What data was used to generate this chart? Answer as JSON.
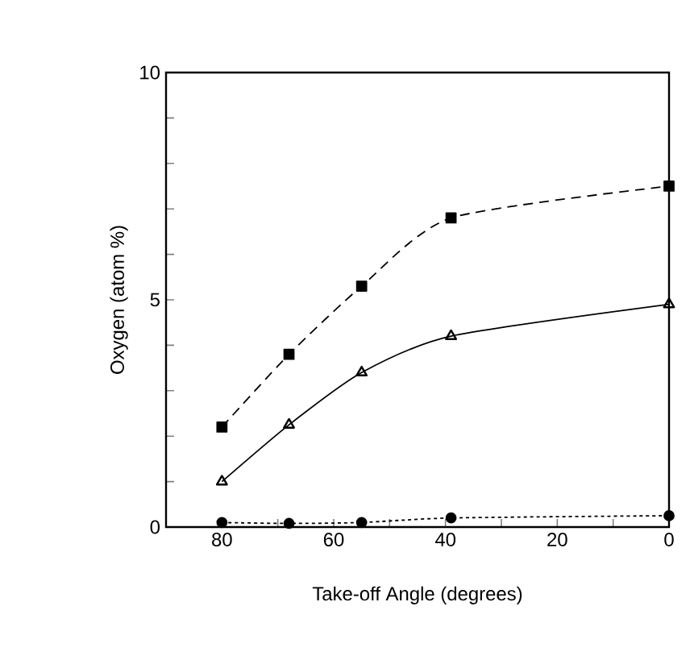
{
  "chart_data": {
    "type": "line",
    "xlabel": "Take-off Angle (degrees)",
    "ylabel": "Oxygen (atom %)",
    "xlim": [
      90,
      0
    ],
    "ylim": [
      0,
      10
    ],
    "xticks": [
      80,
      {
        "value": 70,
        "label": null
      },
      60,
      {
        "value": 50,
        "label": null
      },
      40,
      {
        "value": 30,
        "label": null
      },
      20,
      {
        "value": 10,
        "label": null
      },
      0
    ],
    "yticks": [
      0,
      {
        "value": 1,
        "label": null
      },
      {
        "value": 2,
        "label": null
      },
      {
        "value": 3,
        "label": null
      },
      {
        "value": 4,
        "label": null
      },
      5,
      {
        "value": 6,
        "label": null
      },
      {
        "value": 7,
        "label": null
      },
      {
        "value": 8,
        "label": null
      },
      {
        "value": 9,
        "label": null
      },
      10
    ],
    "grid": false,
    "series": [
      {
        "color": "#000000",
        "marker": "square",
        "line_style": "dashed",
        "x": [
          80,
          68,
          55,
          39,
          0
        ],
        "values": [
          2.2,
          3.8,
          5.3,
          6.8,
          7.5
        ]
      },
      {
        "color": "#000000",
        "marker": "triangle",
        "line_style": "solid",
        "x": [
          80,
          68,
          55,
          39,
          0
        ],
        "values": [
          1.0,
          2.25,
          3.4,
          4.2,
          4.9
        ]
      },
      {
        "color": "#000000",
        "marker": "circle",
        "line_style": "dotted",
        "x": [
          80,
          68,
          55,
          39,
          0
        ],
        "values": [
          0.1,
          0.08,
          0.1,
          0.2,
          0.25
        ]
      }
    ]
  }
}
